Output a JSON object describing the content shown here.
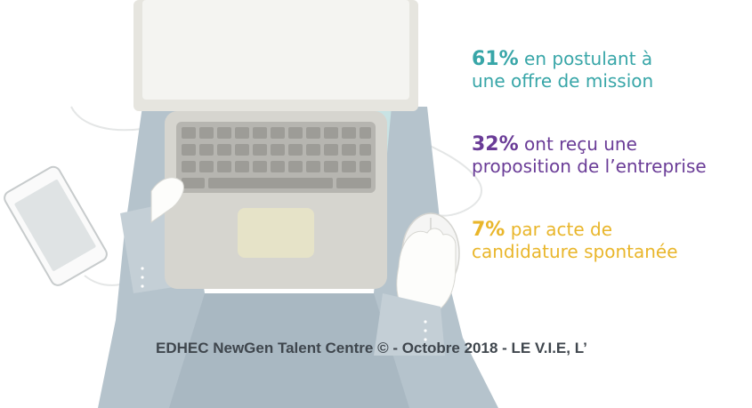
{
  "stats": [
    {
      "percent": "61%",
      "line1": " en postulant à",
      "line2": "une offre de mission",
      "color": "#38a6a8"
    },
    {
      "percent": "32%",
      "line1": " ont reçu une",
      "line2": "proposition de l’entreprise",
      "color": "#6a3c97"
    },
    {
      "percent": "7%",
      "line1": " par acte de",
      "line2": "candidature spontanée",
      "color": "#e9b62b"
    }
  ],
  "footer": "EDHEC NewGen Talent Centre © - Octobre 2018 - LE V.I.E, L’",
  "colors": {
    "jacket": "#b5c3cc",
    "laptop": "#d9d8d2",
    "shirt": "#c8e3e4",
    "text": "#3f464d"
  },
  "icons": [
    "laptop-icon",
    "phone-icon",
    "mouse-icon",
    "hand-icon"
  ]
}
